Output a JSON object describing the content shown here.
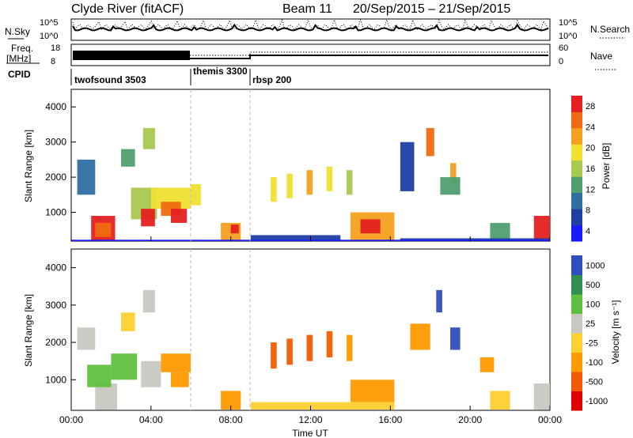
{
  "header": {
    "title": "Clyde River (fitACF)",
    "beam": "Beam 11",
    "date_range": "20/Sep/2015 – 21/Sep/2015"
  },
  "nsky_panel": {
    "left_label": "N.Sky",
    "left_ticks": [
      "10^5",
      "10^0"
    ],
    "right_ticks": [
      "10^5",
      "10^0"
    ],
    "right_label": "N.Search"
  },
  "freq_panel": {
    "left_label_line1": "Freq.",
    "left_label_line2": "[MHz]",
    "left_ticks": [
      "18",
      "8"
    ],
    "right_ticks": [
      "60",
      "0"
    ],
    "right_label": "Nave"
  },
  "cpid": {
    "label": "CPID",
    "segments": [
      {
        "name": "twofsound 3503",
        "start_hour": 0
      },
      {
        "name": "themis 3300",
        "start_hour": 6
      },
      {
        "name": "rbsp 200",
        "start_hour": 9
      }
    ]
  },
  "colors": {
    "power_scale": [
      "#1a1aff",
      "#1f3fa3",
      "#2f6fa0",
      "#4f9f6f",
      "#a8c850",
      "#f0e030",
      "#f5a020",
      "#f06a10",
      "#e42020"
    ],
    "velocity_scale": [
      "#e00000",
      "#f25c00",
      "#ff9a00",
      "#ffd030",
      "#c8c8c0",
      "#5fc040",
      "#2f8f4f",
      "#2f4fbf"
    ]
  },
  "chart_data": [
    {
      "type": "heatmap",
      "name_ref": "power",
      "xlabel": "",
      "ylabel": "Slant Range [km]",
      "x_ticks": [
        "00:00",
        "04:00",
        "08:00",
        "12:00",
        "16:00",
        "20:00",
        "00:00"
      ],
      "xlim_hours": [
        0,
        24
      ],
      "ylim_km": [
        180,
        4500
      ],
      "y_ticks": [
        1000,
        2000,
        3000,
        4000
      ],
      "colorbar_label": "Power [dB]",
      "colorbar_ticks": [
        "28",
        "24",
        "20",
        "16",
        "12",
        "8",
        "4"
      ],
      "colorbar_range": [
        0,
        30
      ]
    },
    {
      "type": "heatmap",
      "name_ref": "velocity",
      "xlabel": "Time UT",
      "ylabel": "Slant Range [km]",
      "x_ticks": [
        "00:00",
        "04:00",
        "08:00",
        "12:00",
        "16:00",
        "20:00",
        "00:00"
      ],
      "xlim_hours": [
        0,
        24
      ],
      "ylim_km": [
        180,
        4500
      ],
      "y_ticks": [
        1000,
        2000,
        3000,
        4000
      ],
      "colorbar_label": "Velocity [m s⁻¹]",
      "colorbar_ticks": [
        "1000",
        "500",
        "100",
        "25",
        "-25",
        "-100",
        "-500",
        "-1000"
      ],
      "colorbar_range": [
        -1000,
        1000
      ]
    }
  ]
}
